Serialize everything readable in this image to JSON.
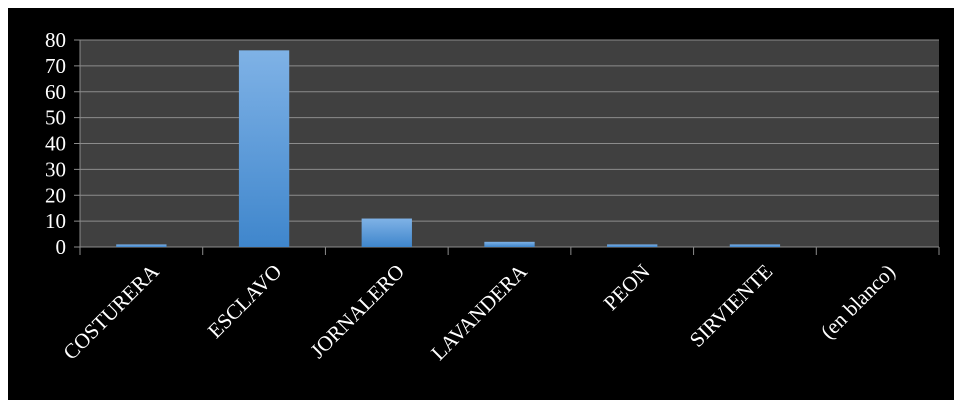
{
  "chart_data": {
    "type": "bar",
    "categories": [
      "COSTURERA",
      "ESCLAVO",
      "JORNALERO",
      "LAVANDERA",
      "PEON",
      "SIRVIENTE",
      "(en blanco)"
    ],
    "values": [
      1,
      76,
      11,
      2,
      1,
      1,
      0
    ],
    "ylim": [
      0,
      80
    ],
    "yticks": [
      0,
      10,
      20,
      30,
      40,
      50,
      60,
      70,
      80
    ],
    "grid": true,
    "legend": "none",
    "colors": {
      "background": "#000000",
      "plot_area": "#404040",
      "gridline": "#8c8c8c",
      "bar_top": "#7fb2e6",
      "bar_bottom": "#3f86cc",
      "text": "#ffffff"
    }
  }
}
